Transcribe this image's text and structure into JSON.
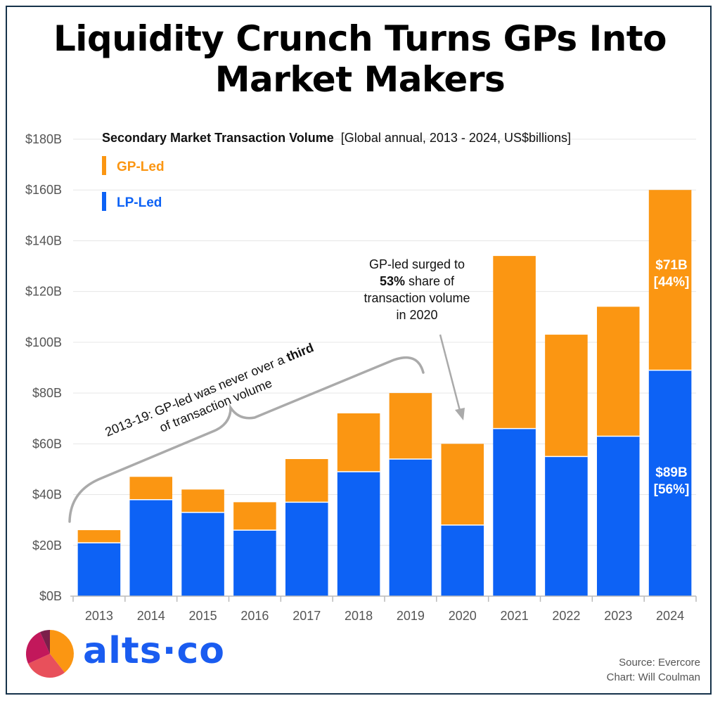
{
  "title": {
    "line1": "Liquidity Crunch Turns GPs Into",
    "line2": "Market Makers"
  },
  "chart_data": {
    "type": "bar",
    "stacked": true,
    "subtitle_bold": "Secondary Market Transaction Volume",
    "subtitle_rest": "[Global annual, 2013 - 2024, US$billions]",
    "categories": [
      "2013",
      "2014",
      "2015",
      "2016",
      "2017",
      "2018",
      "2019",
      "2020",
      "2021",
      "2022",
      "2023",
      "2024"
    ],
    "series": [
      {
        "name": "LP-Led",
        "color": "#0d62f5",
        "values": [
          21,
          38,
          33,
          26,
          37,
          49,
          54,
          28,
          66,
          55,
          63,
          89
        ]
      },
      {
        "name": "GP-Led",
        "color": "#fb9612",
        "values": [
          5,
          9,
          9,
          11,
          17,
          23,
          26,
          32,
          68,
          48,
          51,
          71
        ]
      }
    ],
    "ylim": [
      0,
      180
    ],
    "yticks": [
      0,
      20,
      40,
      60,
      80,
      100,
      120,
      140,
      160,
      180
    ],
    "ytick_labels": [
      "$0B",
      "$20B",
      "$40B",
      "$60B",
      "$80B",
      "$100B",
      "$120B",
      "$140B",
      "$160B",
      "$180B"
    ],
    "grid": true,
    "legend_position": "top-left",
    "legend_order": [
      "GP-Led",
      "LP-Led"
    ],
    "data_labels": {
      "gp_value": "$71B",
      "gp_share": "[44%]",
      "lp_value": "$89B",
      "lp_share": "[56%]"
    },
    "annotations": {
      "brace_line1_pre": "2013-19: GP-led was never over a ",
      "brace_line1_bold": "third",
      "brace_line2": "of transaction volume",
      "gp_surge_line1": "GP-led surged to",
      "gp_surge_line2_bold": "53%",
      "gp_surge_line2_rest": " share of",
      "gp_surge_line3": "transaction volume",
      "gp_surge_line4": "in 2020"
    }
  },
  "branding": {
    "logo": "alts·co",
    "logo_icon": "pie-logo-icon",
    "source": "Source: Evercore",
    "credit": "Chart: Will Coulman"
  },
  "colors": {
    "gp_led": "#fb9612",
    "lp_led": "#0d62f5",
    "frame": "#16324a"
  }
}
